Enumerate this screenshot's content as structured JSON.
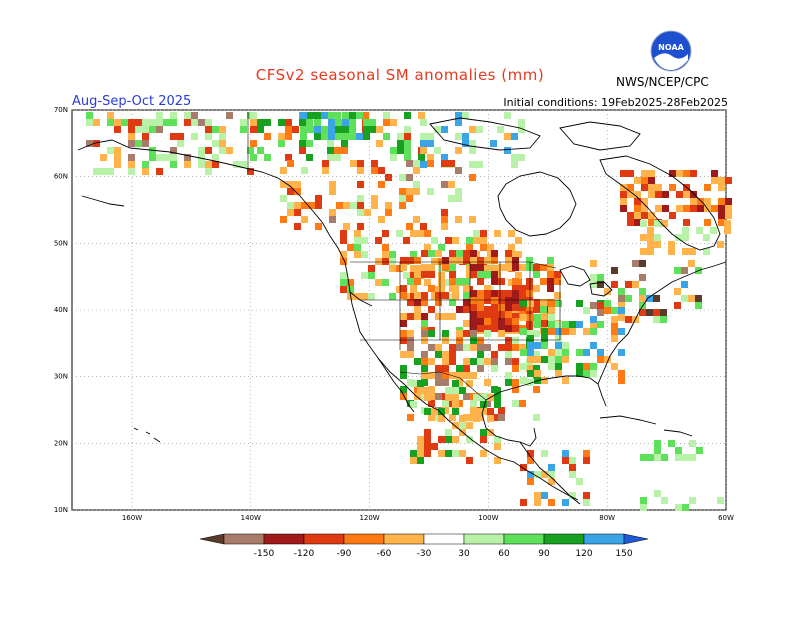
{
  "header": {
    "title": "CFSv2 seasonal SM anomalies (mm)",
    "season": "Aug-Sep-Oct 2025",
    "initial_conditions": "Initial conditions: 19Feb2025-28Feb2025",
    "org": "NWS/NCEP/CPC",
    "logo_text": "NOAA"
  },
  "map": {
    "lat_labels": [
      "70N",
      "60N",
      "50N",
      "40N",
      "30N",
      "20N",
      "10N"
    ],
    "lon_labels": [
      "160W",
      "140W",
      "120W",
      "100W",
      "80W",
      "60W"
    ]
  },
  "colorbar": {
    "ticks": [
      "-150",
      "-120",
      "-90",
      "-60",
      "-30",
      "30",
      "60",
      "90",
      "120",
      "150"
    ],
    "colors": [
      "#5a3a2a",
      "#a87c6a",
      "#a11a1a",
      "#e03a12",
      "#ff7a12",
      "#ffb34a",
      "#ffffff",
      "#b8f2a8",
      "#5fe05a",
      "#18a020",
      "#3aa4e6",
      "#1e5ad6"
    ]
  }
}
